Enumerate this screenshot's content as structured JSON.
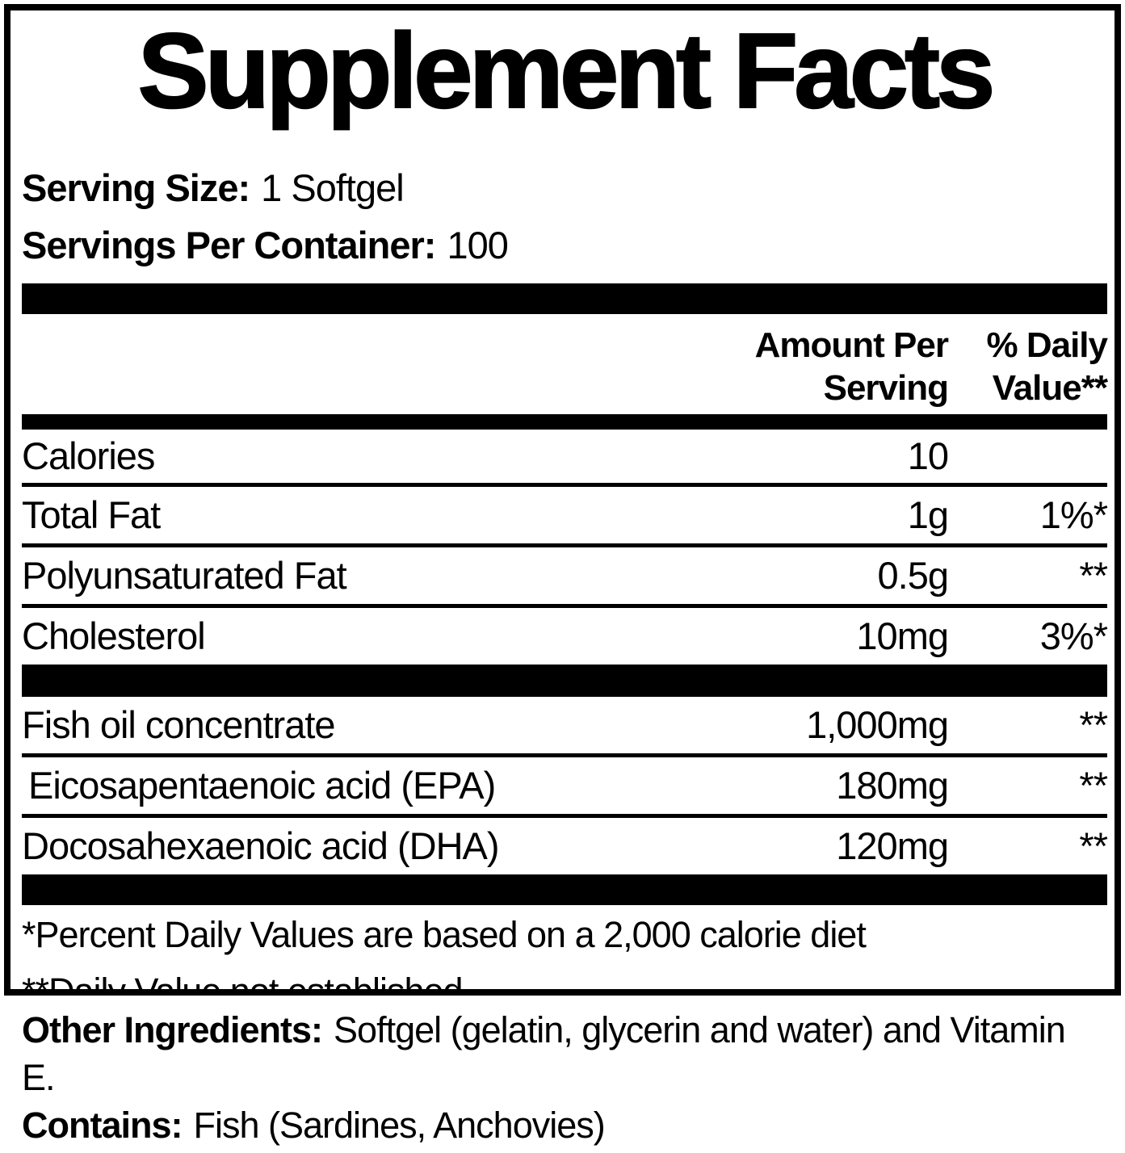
{
  "panel": {
    "title": "Supplement Facts",
    "serving_size": {
      "label": "Serving Size:",
      "value": "1 Softgel"
    },
    "servings_per_container": {
      "label": "Servings Per Container:",
      "value": "100"
    },
    "columns": {
      "amount_header": "Amount Per Serving",
      "daily_value_header": "% Daily Value**"
    },
    "rows": [
      {
        "label": "Calories",
        "amount": "10",
        "daily_value": ""
      },
      {
        "label": "Total Fat",
        "amount": "1g",
        "daily_value": "1%*"
      },
      {
        "label": "Polyunsaturated Fat",
        "amount": "0.5g",
        "daily_value": "**"
      },
      {
        "label": "Cholesterol",
        "amount": "10mg",
        "daily_value": "3%*"
      },
      {
        "label": "Fish oil concentrate",
        "amount": "1,000mg",
        "daily_value": "**"
      },
      {
        "label": "Eicosapentaenoic acid (EPA)",
        "amount": "180mg",
        "daily_value": "**"
      },
      {
        "label": "Docosahexaenoic acid (DHA)",
        "amount": "120mg",
        "daily_value": "**"
      }
    ],
    "footnotes": [
      "*Percent Daily Values are based on a 2,000 calorie diet",
      "**Daily Value not established."
    ]
  },
  "additional_info": {
    "other_ingredients_label": "Other Ingredients:",
    "other_ingredients_value": "Softgel (gelatin, glycerin and water) and Vitamin E.",
    "contains_label": "Contains:",
    "contains_value": "Fish (Sardines, Anchovies)"
  },
  "colors": {
    "text": "#000000",
    "background": "#ffffff"
  }
}
